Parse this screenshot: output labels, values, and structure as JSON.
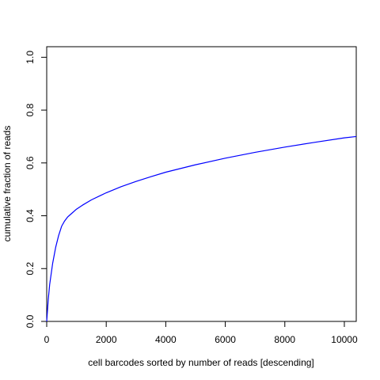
{
  "chart_data": {
    "type": "line",
    "title": "",
    "xlabel": "cell barcodes sorted by number of reads [descending]",
    "ylabel": "cumulative fraction of reads",
    "xlim": [
      0,
      10400
    ],
    "ylim": [
      0,
      1.04
    ],
    "x_ticks": [
      0,
      2000,
      4000,
      6000,
      8000,
      10000
    ],
    "x_tick_labels": [
      "0",
      "2000",
      "4000",
      "6000",
      "8000",
      "10000"
    ],
    "y_ticks": [
      0.0,
      0.2,
      0.4,
      0.6,
      0.8,
      1.0
    ],
    "y_tick_labels": [
      "0.0",
      "0.2",
      "0.4",
      "0.6",
      "0.8",
      "1.0"
    ],
    "grid": false,
    "series": [
      {
        "color": "#0000ff",
        "x": [
          0,
          50,
          100,
          200,
          300,
          400,
          500,
          600,
          700,
          800,
          1000,
          1200,
          1500,
          2000,
          2500,
          3000,
          3500,
          4000,
          5000,
          6000,
          7000,
          8000,
          9000,
          10000,
          10400
        ],
        "y": [
          0.0,
          0.08,
          0.14,
          0.22,
          0.28,
          0.325,
          0.36,
          0.38,
          0.395,
          0.405,
          0.425,
          0.44,
          0.46,
          0.487,
          0.51,
          0.53,
          0.548,
          0.565,
          0.593,
          0.618,
          0.64,
          0.66,
          0.678,
          0.695,
          0.7
        ]
      }
    ]
  }
}
